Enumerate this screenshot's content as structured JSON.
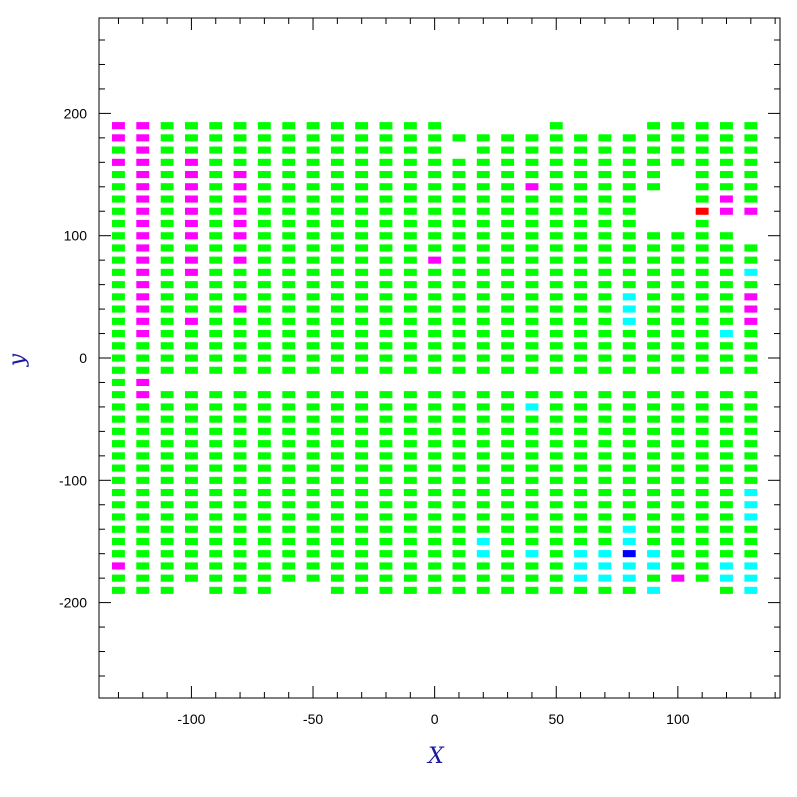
{
  "chart_data": {
    "type": "heatmap",
    "xlabel": "X",
    "ylabel": "y",
    "xlim": [
      -138,
      142
    ],
    "ylim": [
      -278,
      278
    ],
    "x_ticks": [
      -100,
      -50,
      0,
      50,
      100
    ],
    "y_ticks": [
      -200,
      -100,
      0,
      100,
      200
    ],
    "x_minor_step": 10,
    "y_minor_step": 20,
    "cell_size": {
      "dx": 5.3,
      "dy": 5.8
    },
    "colors": {
      "default": "#00ff00",
      "magenta": "#ff00ff",
      "cyan": "#00ffff",
      "red": "#ff0000",
      "blue": "#0000ff",
      "axis_title": "#1a1aa0"
    },
    "columns": [
      {
        "x": -130,
        "y_range": [
          -190,
          190
        ]
      },
      {
        "x": -120,
        "y_range": [
          -190,
          190
        ]
      },
      {
        "x": -110,
        "y_range": [
          -190,
          190
        ],
        "missing": [
          -20
        ]
      },
      {
        "x": -100,
        "y_range": [
          -180,
          190
        ],
        "missing": [
          -20
        ]
      },
      {
        "x": -90,
        "y_range": [
          -190,
          190
        ],
        "missing": [
          -20
        ]
      },
      {
        "x": -80,
        "y_range": [
          -190,
          190
        ],
        "missing": [
          -20
        ]
      },
      {
        "x": -70,
        "y_range": [
          -190,
          190
        ],
        "missing": [
          -20
        ]
      },
      {
        "x": -60,
        "y_range": [
          -180,
          190
        ],
        "missing": [
          -20
        ]
      },
      {
        "x": -50,
        "y_range": [
          -180,
          190
        ],
        "missing": [
          -20
        ]
      },
      {
        "x": -40,
        "y_range": [
          -190,
          190
        ],
        "missing": [
          -20
        ]
      },
      {
        "x": -30,
        "y_range": [
          -190,
          190
        ],
        "missing": [
          -20
        ]
      },
      {
        "x": -20,
        "y_range": [
          -190,
          190
        ],
        "missing": [
          -20
        ]
      },
      {
        "x": -10,
        "y_range": [
          -190,
          190
        ],
        "missing": [
          -20
        ]
      },
      {
        "x": 0,
        "y_range": [
          -190,
          190
        ],
        "missing": [
          -20
        ]
      },
      {
        "x": 10,
        "y_range": [
          -190,
          180
        ],
        "missing": [
          -20,
          170
        ]
      },
      {
        "x": 20,
        "y_range": [
          -190,
          180
        ],
        "missing": [
          -20
        ]
      },
      {
        "x": 30,
        "y_range": [
          -190,
          180
        ],
        "missing": [
          -20
        ]
      },
      {
        "x": 40,
        "y_range": [
          -190,
          180
        ],
        "missing": [
          -20
        ]
      },
      {
        "x": 50,
        "y_range": [
          -190,
          190
        ],
        "missing": [
          -20
        ]
      },
      {
        "x": 60,
        "y_range": [
          -190,
          180
        ],
        "missing": [
          -20
        ]
      },
      {
        "x": 70,
        "y_range": [
          -190,
          180
        ],
        "missing": [
          -20
        ]
      },
      {
        "x": 80,
        "y_range": [
          -190,
          180
        ],
        "missing": [
          -20
        ]
      },
      {
        "x": 90,
        "y_range": [
          -190,
          190
        ],
        "missing": [
          -20,
          130,
          120,
          110
        ]
      },
      {
        "x": 100,
        "y_range": [
          -180,
          190
        ],
        "missing": [
          -20,
          150,
          140,
          130,
          120,
          110
        ]
      },
      {
        "x": 110,
        "y_range": [
          -180,
          190
        ],
        "missing": [
          -20
        ]
      },
      {
        "x": 120,
        "y_range": [
          -190,
          190
        ],
        "missing": [
          -20,
          110
        ]
      },
      {
        "x": 130,
        "y_range": [
          -190,
          190
        ],
        "missing": [
          -20,
          110,
          100
        ]
      }
    ],
    "colored_cells": [
      {
        "x": -130,
        "y": 190,
        "c": "magenta"
      },
      {
        "x": -130,
        "y": 180,
        "c": "magenta"
      },
      {
        "x": -130,
        "y": 160,
        "c": "magenta"
      },
      {
        "x": -130,
        "y": -170,
        "c": "magenta"
      },
      {
        "x": -120,
        "y": 190,
        "c": "magenta"
      },
      {
        "x": -120,
        "y": 180,
        "c": "magenta"
      },
      {
        "x": -120,
        "y": 170,
        "c": "magenta"
      },
      {
        "x": -120,
        "y": 160,
        "c": "magenta"
      },
      {
        "x": -120,
        "y": 150,
        "c": "magenta"
      },
      {
        "x": -120,
        "y": 140,
        "c": "magenta"
      },
      {
        "x": -120,
        "y": 130,
        "c": "magenta"
      },
      {
        "x": -120,
        "y": 120,
        "c": "magenta"
      },
      {
        "x": -120,
        "y": 110,
        "c": "magenta"
      },
      {
        "x": -120,
        "y": 100,
        "c": "magenta"
      },
      {
        "x": -120,
        "y": 90,
        "c": "magenta"
      },
      {
        "x": -120,
        "y": 80,
        "c": "magenta"
      },
      {
        "x": -120,
        "y": 70,
        "c": "magenta"
      },
      {
        "x": -120,
        "y": 60,
        "c": "magenta"
      },
      {
        "x": -120,
        "y": 50,
        "c": "magenta"
      },
      {
        "x": -120,
        "y": 40,
        "c": "magenta"
      },
      {
        "x": -120,
        "y": 30,
        "c": "magenta"
      },
      {
        "x": -120,
        "y": 20,
        "c": "magenta"
      },
      {
        "x": -120,
        "y": -20,
        "c": "magenta"
      },
      {
        "x": -120,
        "y": -30,
        "c": "magenta"
      },
      {
        "x": -100,
        "y": 160,
        "c": "magenta"
      },
      {
        "x": -100,
        "y": 150,
        "c": "magenta"
      },
      {
        "x": -100,
        "y": 140,
        "c": "magenta"
      },
      {
        "x": -100,
        "y": 130,
        "c": "magenta"
      },
      {
        "x": -100,
        "y": 120,
        "c": "magenta"
      },
      {
        "x": -100,
        "y": 110,
        "c": "magenta"
      },
      {
        "x": -100,
        "y": 100,
        "c": "magenta"
      },
      {
        "x": -100,
        "y": 80,
        "c": "magenta"
      },
      {
        "x": -100,
        "y": 70,
        "c": "magenta"
      },
      {
        "x": -100,
        "y": 30,
        "c": "magenta"
      },
      {
        "x": -80,
        "y": 150,
        "c": "magenta"
      },
      {
        "x": -80,
        "y": 140,
        "c": "magenta"
      },
      {
        "x": -80,
        "y": 130,
        "c": "magenta"
      },
      {
        "x": -80,
        "y": 120,
        "c": "magenta"
      },
      {
        "x": -80,
        "y": 110,
        "c": "magenta"
      },
      {
        "x": -80,
        "y": 100,
        "c": "magenta"
      },
      {
        "x": -80,
        "y": 80,
        "c": "magenta"
      },
      {
        "x": -80,
        "y": 40,
        "c": "magenta"
      },
      {
        "x": 0,
        "y": 80,
        "c": "magenta"
      },
      {
        "x": 40,
        "y": 140,
        "c": "magenta"
      },
      {
        "x": 100,
        "y": -180,
        "c": "magenta"
      },
      {
        "x": 110,
        "y": 120,
        "c": "red"
      },
      {
        "x": 120,
        "y": 130,
        "c": "magenta"
      },
      {
        "x": 120,
        "y": 120,
        "c": "magenta"
      },
      {
        "x": 130,
        "y": 120,
        "c": "magenta"
      },
      {
        "x": 130,
        "y": 50,
        "c": "magenta"
      },
      {
        "x": 130,
        "y": 40,
        "c": "magenta"
      },
      {
        "x": 130,
        "y": 30,
        "c": "magenta"
      },
      {
        "x": 40,
        "y": -40,
        "c": "cyan"
      },
      {
        "x": 20,
        "y": -150,
        "c": "cyan"
      },
      {
        "x": 20,
        "y": -160,
        "c": "cyan"
      },
      {
        "x": 40,
        "y": -160,
        "c": "cyan"
      },
      {
        "x": 60,
        "y": -160,
        "c": "cyan"
      },
      {
        "x": 60,
        "y": -170,
        "c": "cyan"
      },
      {
        "x": 60,
        "y": -180,
        "c": "cyan"
      },
      {
        "x": 70,
        "y": -160,
        "c": "cyan"
      },
      {
        "x": 70,
        "y": -170,
        "c": "cyan"
      },
      {
        "x": 70,
        "y": -180,
        "c": "cyan"
      },
      {
        "x": 80,
        "y": 50,
        "c": "cyan"
      },
      {
        "x": 80,
        "y": 40,
        "c": "cyan"
      },
      {
        "x": 80,
        "y": 30,
        "c": "cyan"
      },
      {
        "x": 80,
        "y": -140,
        "c": "cyan"
      },
      {
        "x": 80,
        "y": -150,
        "c": "cyan"
      },
      {
        "x": 80,
        "y": -160,
        "c": "blue"
      },
      {
        "x": 80,
        "y": -170,
        "c": "cyan"
      },
      {
        "x": 80,
        "y": -180,
        "c": "cyan"
      },
      {
        "x": 90,
        "y": -160,
        "c": "cyan"
      },
      {
        "x": 90,
        "y": -170,
        "c": "cyan"
      },
      {
        "x": 90,
        "y": -190,
        "c": "cyan"
      },
      {
        "x": 120,
        "y": 20,
        "c": "cyan"
      },
      {
        "x": 120,
        "y": -170,
        "c": "cyan"
      },
      {
        "x": 120,
        "y": -180,
        "c": "cyan"
      },
      {
        "x": 130,
        "y": 70,
        "c": "cyan"
      },
      {
        "x": 130,
        "y": -110,
        "c": "cyan"
      },
      {
        "x": 130,
        "y": -120,
        "c": "cyan"
      },
      {
        "x": 130,
        "y": -130,
        "c": "cyan"
      },
      {
        "x": 130,
        "y": -170,
        "c": "cyan"
      },
      {
        "x": 130,
        "y": -180,
        "c": "cyan"
      },
      {
        "x": 130,
        "y": -190,
        "c": "cyan"
      }
    ]
  }
}
